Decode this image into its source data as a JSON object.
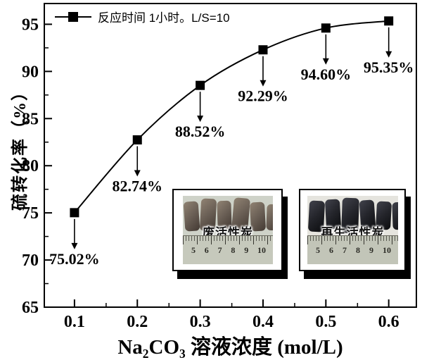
{
  "chart_data": {
    "type": "line",
    "legend": "反应时间 1小时。L/S=10",
    "x": [
      0.1,
      0.2,
      0.3,
      0.4,
      0.5,
      0.6
    ],
    "y": [
      75.02,
      82.74,
      88.52,
      92.29,
      94.6,
      95.35
    ],
    "point_labels": [
      "75.02%",
      "82.74%",
      "88.52%",
      "92.29%",
      "94.60%",
      "95.35%"
    ],
    "xlabel_parts": {
      "pre": "Na",
      "sub1": "2",
      "mid": "CO",
      "sub2": "3",
      "post": " 溶液浓度 (mol/L)"
    },
    "ylabel": "硫转化率（%）",
    "xticks": [
      "0.1",
      "0.2",
      "0.3",
      "0.4",
      "0.5",
      "0.6"
    ],
    "xtick_values": [
      0.1,
      0.2,
      0.3,
      0.4,
      0.5,
      0.6
    ],
    "yticks": [
      "65",
      "70",
      "75",
      "80",
      "85",
      "90",
      "95"
    ],
    "ytick_values": [
      65,
      70,
      75,
      80,
      85,
      90,
      95
    ],
    "xlim": [
      0.052,
      0.644
    ],
    "ylim": [
      65,
      97.2
    ],
    "grid": false,
    "legend_position": "top-left",
    "line_color": "#000000",
    "marker": "square"
  },
  "insets": [
    {
      "label": "废活性炭",
      "ruler_numbers": [
        "5",
        "6",
        "7",
        "8",
        "9",
        "10"
      ],
      "photo_bg": "#ced2c8",
      "ruler_bg": "#c6c9bc",
      "pellet_light": "#8a7d6e",
      "pellet_base": "#6b6056",
      "pellet_dark": "#493f38"
    },
    {
      "label": "再生活性炭",
      "ruler_numbers": [
        "5",
        "6",
        "7",
        "8",
        "9",
        "10"
      ],
      "photo_bg": "#e5e4de",
      "ruler_bg": "#c2c5b8",
      "pellet_light": "#3c3d46",
      "pellet_base": "#24252b",
      "pellet_dark": "#0f1013"
    }
  ]
}
